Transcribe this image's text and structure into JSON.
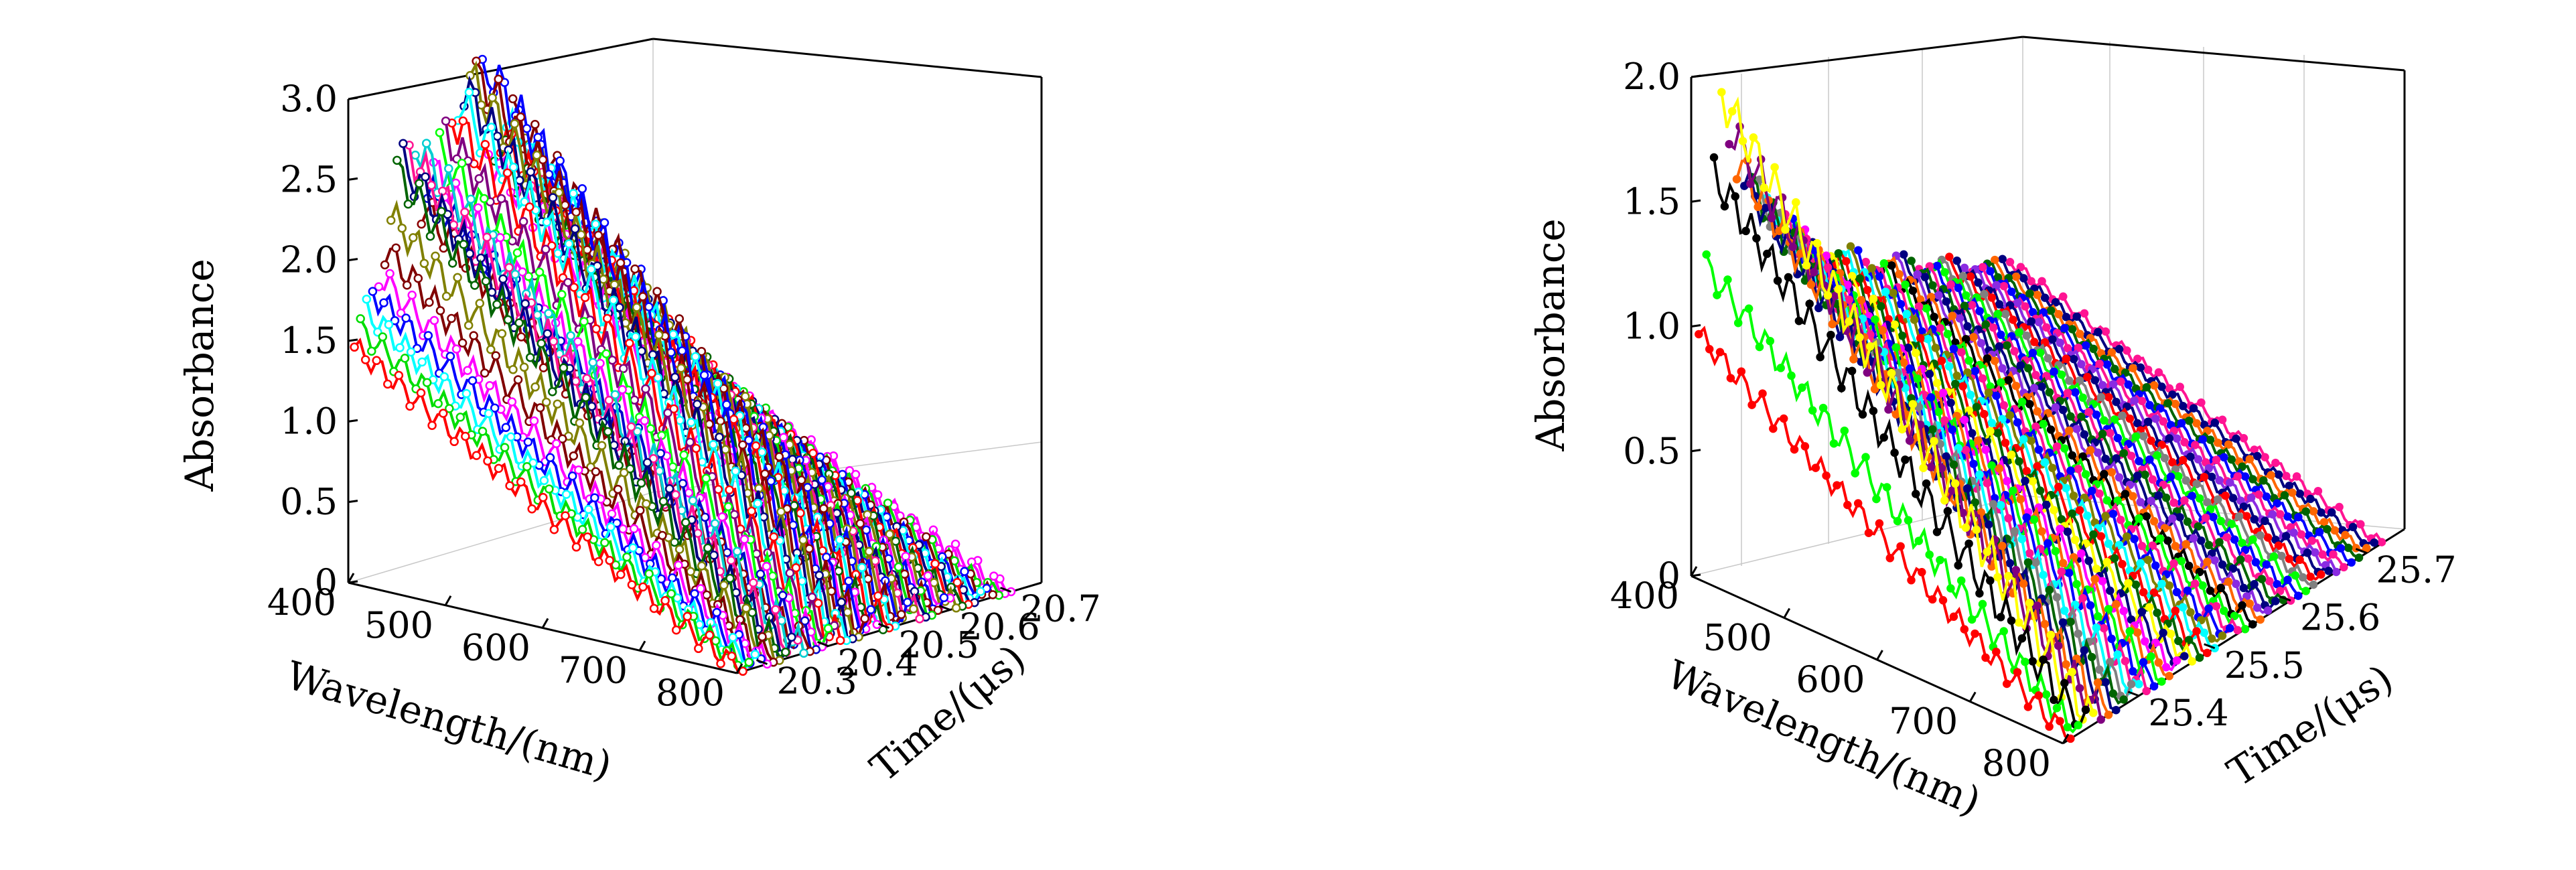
{
  "chart_data": [
    {
      "type": "line",
      "subtype": "3d-waterfall",
      "title": "",
      "xlabel": "Wavelength/(nm)",
      "ylabel": "Time/(μs)",
      "zlabel": "Absorbance",
      "xlim": [
        400,
        800
      ],
      "ylim": [
        20.25,
        20.75
      ],
      "zlim": [
        0,
        3.0
      ],
      "x_ticks": [
        "400",
        "500",
        "600",
        "700",
        "800"
      ],
      "y_ticks": [
        "20.3",
        "20.4",
        "20.5",
        "20.6",
        "20.7"
      ],
      "z_ticks": [
        "0",
        "0.5",
        "1.0",
        "1.5",
        "2.0",
        "2.5",
        "3.0"
      ],
      "grid": true,
      "marker": "open-circle",
      "series_times": [
        20.26,
        20.27,
        20.28,
        20.29,
        20.3,
        20.31,
        20.32,
        20.33,
        20.34,
        20.35,
        20.36,
        20.37,
        20.38,
        20.39,
        20.4,
        20.41,
        20.42,
        20.43,
        20.44,
        20.45,
        20.46,
        20.47,
        20.48,
        20.49,
        20.5,
        20.51,
        20.52,
        20.53,
        20.54,
        20.55,
        20.56,
        20.57,
        20.58,
        20.59,
        20.6,
        20.61,
        20.62,
        20.63,
        20.64,
        20.65,
        20.66,
        20.67,
        20.68,
        20.69,
        20.7
      ],
      "series_peaks": [
        1.45,
        1.55,
        1.65,
        1.75,
        1.85,
        2.0,
        2.2,
        2.45,
        2.5,
        2.55,
        2.6,
        2.2,
        2.3,
        2.4,
        2.5,
        2.6,
        2.7,
        2.8,
        2.85,
        2.9,
        2.95,
        3.0,
        2.4,
        2.45,
        2.5,
        2.55,
        2.6,
        2.5,
        2.4,
        2.2,
        2.1,
        2.0,
        1.9,
        1.85,
        1.8,
        1.75,
        1.7,
        1.65,
        1.55,
        1.45,
        1.4,
        1.35,
        1.3,
        1.25,
        1.2
      ],
      "colors": [
        "#ff0000",
        "#00dd00",
        "#00ffff",
        "#0000ff",
        "#ff00ff",
        "#800000",
        "#808000",
        "#006400",
        "#000080",
        "#ff1493",
        "#00ced1",
        "#8b0000",
        "#0000cd",
        "#ff00ff",
        "#00ff00",
        "#800080",
        "#ff0000",
        "#00ffff",
        "#000080",
        "#808000",
        "#8b0000",
        "#0000ff",
        "#ff00ff",
        "#006400",
        "#ff0000",
        "#00ffff",
        "#800000",
        "#0000ff",
        "#808000",
        "#ff1493",
        "#000080",
        "#00dd00",
        "#8b0000",
        "#0000ff",
        "#ff00ff",
        "#808000",
        "#006400",
        "#ff0000",
        "#000080",
        "#00ffff",
        "#0000ff",
        "#800000",
        "#00dd00",
        "#ff00ff",
        "#ff00ff"
      ]
    },
    {
      "type": "line",
      "subtype": "3d-waterfall",
      "title": "",
      "xlabel": "Wavelength/(nm)",
      "ylabel": "Time/(μs)",
      "zlabel": "Absorbance",
      "xlim": [
        400,
        800
      ],
      "ylim": [
        25.3,
        25.75
      ],
      "zlim": [
        0,
        2.0
      ],
      "x_ticks": [
        "400",
        "500",
        "600",
        "700",
        "800"
      ],
      "y_ticks": [
        "25.4",
        "25.5",
        "25.6",
        "25.7"
      ],
      "z_ticks": [
        "0",
        "0.5",
        "1.0",
        "1.5",
        "2.0"
      ],
      "grid": true,
      "marker": "filled-dot",
      "series_times": [
        25.31,
        25.32,
        25.33,
        25.34,
        25.35,
        25.36,
        25.37,
        25.38,
        25.39,
        25.4,
        25.41,
        25.42,
        25.43,
        25.44,
        25.45,
        25.46,
        25.47,
        25.48,
        25.49,
        25.5,
        25.51,
        25.52,
        25.53,
        25.54,
        25.55,
        25.56,
        25.57,
        25.58,
        25.59,
        25.6,
        25.61,
        25.62,
        25.63,
        25.64,
        25.65,
        25.66,
        25.67,
        25.68,
        25.69,
        25.7,
        25.71,
        25.72
      ],
      "series_peaks": [
        0.95,
        1.2,
        1.55,
        1.85,
        1.7,
        1.55,
        1.45,
        1.4,
        1.35,
        1.3,
        1.25,
        1.2,
        1.15,
        1.1,
        1.05,
        1.0,
        0.98,
        0.95,
        0.92,
        0.9,
        0.88,
        0.85,
        0.82,
        0.8,
        0.78,
        0.76,
        0.74,
        0.72,
        0.7,
        0.68,
        0.66,
        0.64,
        0.62,
        0.6,
        0.58,
        0.56,
        0.54,
        0.52,
        0.5,
        0.48,
        0.47,
        0.46
      ],
      "colors": [
        "#ff0000",
        "#00ff00",
        "#000000",
        "#ffff00",
        "#800080",
        "#ff6600",
        "#000080",
        "#006400",
        "#808080",
        "#00ffff",
        "#ff1493",
        "#0000ff",
        "#00ff00",
        "#ff6600",
        "#ff00ff",
        "#000080",
        "#ffff00",
        "#006400",
        "#ff0000",
        "#00ffff",
        "#808000",
        "#0000ff",
        "#ff1493",
        "#00ff00",
        "#000000",
        "#ff6600",
        "#8a2be2",
        "#000080",
        "#006400",
        "#ff1493",
        "#0000ff",
        "#00ff00",
        "#808080",
        "#ff0000",
        "#000080",
        "#8a2be2",
        "#ff1493",
        "#0000ff",
        "#006400",
        "#ff6600",
        "#000080",
        "#ff1493"
      ]
    }
  ]
}
